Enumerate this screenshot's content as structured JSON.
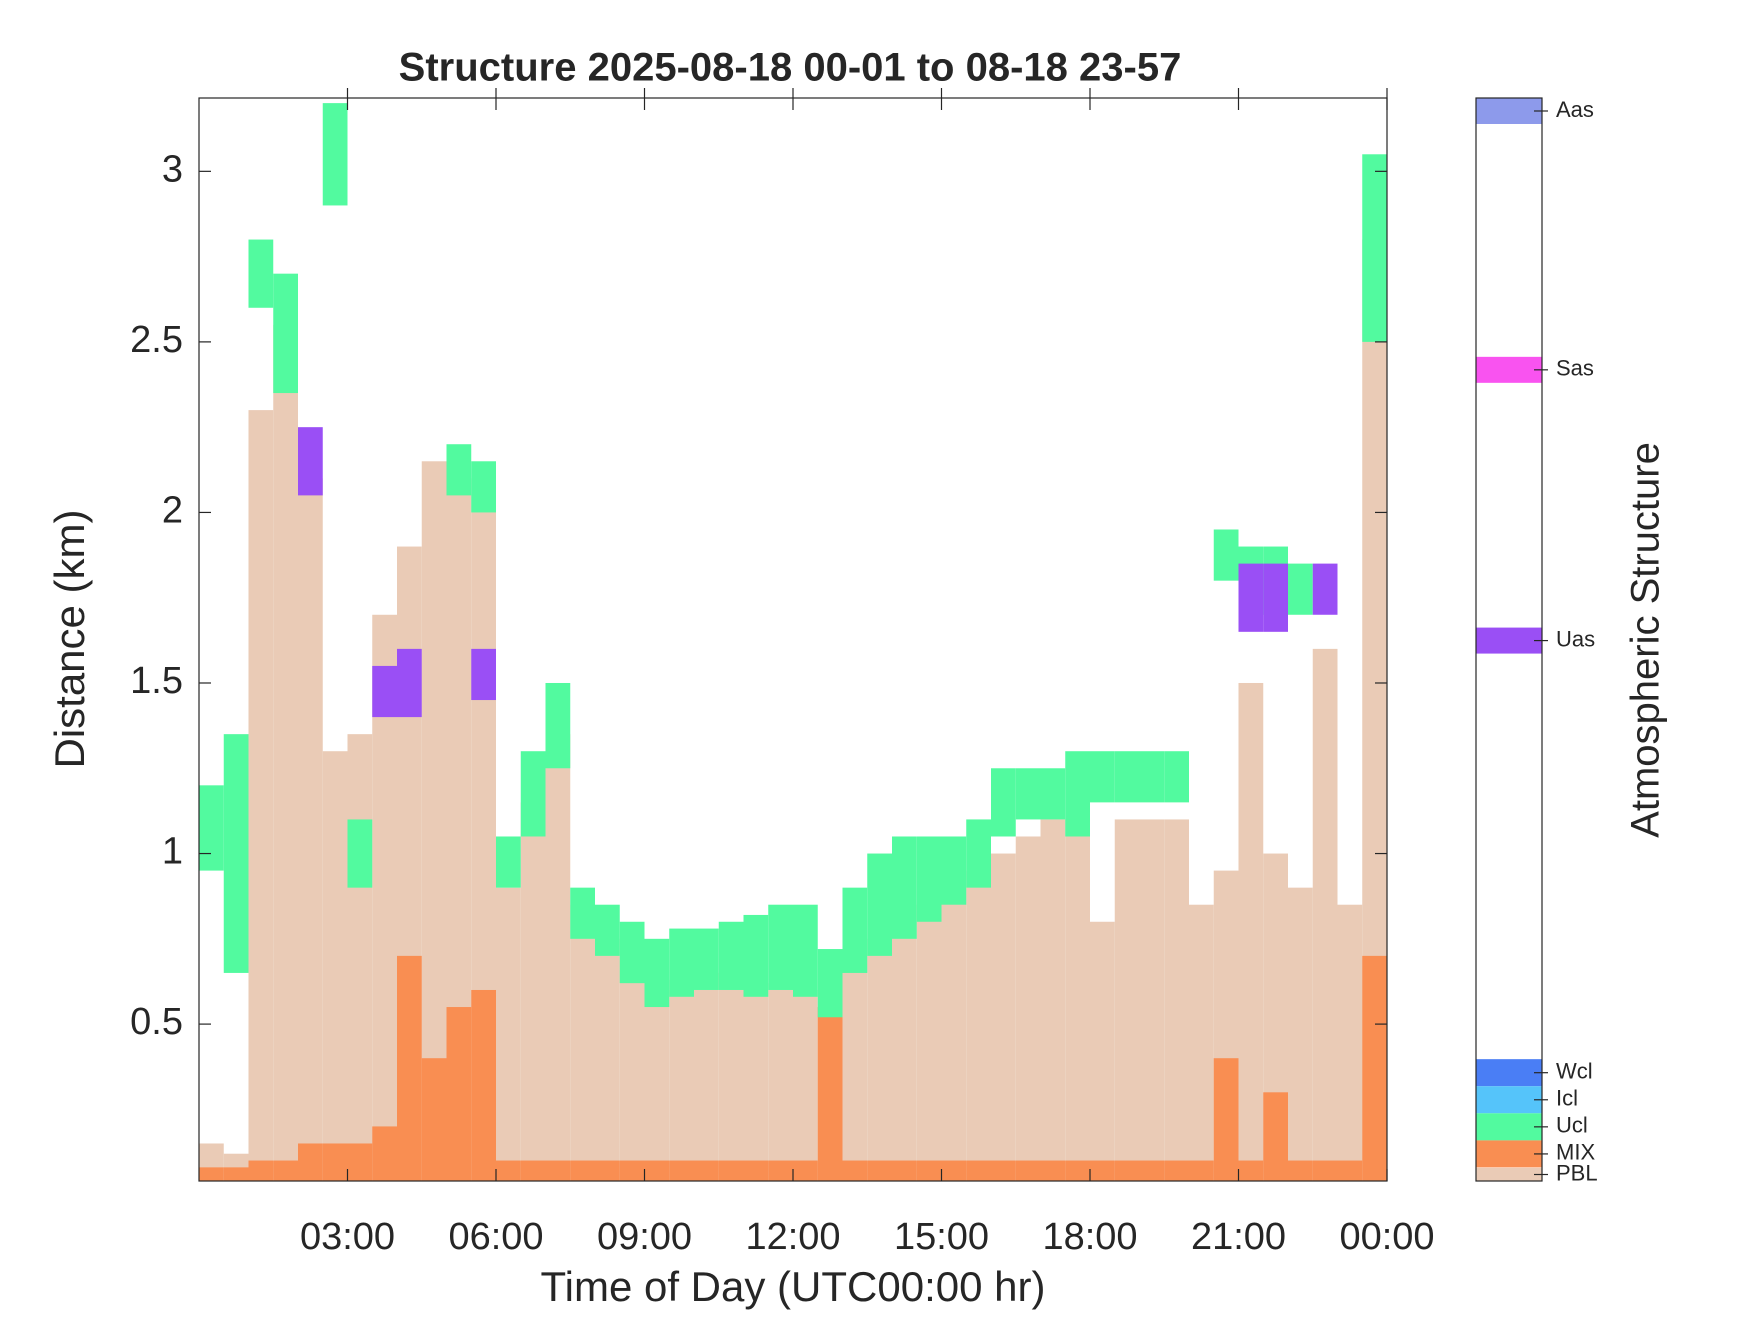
{
  "chart_data": {
    "type": "structure",
    "title": "Structure 2025-08-18 00-01 to 08-18 23-57",
    "x_label": "Time of Day (UTC00:00 hr)",
    "y_label": "Distance (km)",
    "xlim": [
      0,
      24
    ],
    "xticks": [
      {
        "value": 3,
        "label": "03:00"
      },
      {
        "value": 6,
        "label": "06:00"
      },
      {
        "value": 9,
        "label": "09:00"
      },
      {
        "value": 12,
        "label": "12:00"
      },
      {
        "value": 15,
        "label": "15:00"
      },
      {
        "value": 18,
        "label": "18:00"
      },
      {
        "value": 21,
        "label": "21:00"
      },
      {
        "value": 24,
        "label": "00:00"
      }
    ],
    "ylim": [
      0.04,
      3.215
    ],
    "yticks": [
      0.5,
      1,
      1.5,
      2,
      2.5,
      3
    ],
    "x": [
      0.25,
      0.75,
      1.25,
      1.75,
      2.25,
      2.75,
      3.25,
      3.75,
      4.25,
      4.75,
      5.25,
      5.75,
      6.25,
      6.75,
      7.25,
      7.75,
      8.25,
      8.75,
      9.25,
      9.75,
      10.25,
      10.75,
      11.25,
      11.75,
      12.25,
      12.75,
      13.25,
      13.75,
      14.25,
      14.75,
      15.25,
      15.75,
      16.25,
      16.75,
      17.25,
      17.75,
      18.25,
      18.75,
      19.25,
      19.75,
      20.25,
      20.75,
      21.25,
      21.75,
      22.25,
      22.75,
      23.25,
      23.75
    ],
    "series": [
      {
        "name": "PBL",
        "color": "#eacbb6",
        "values": [
          0.15,
          0.12,
          2.3,
          2.55,
          2.1,
          1.3,
          1.35,
          1.7,
          1.9,
          2.15,
          2.1,
          2.05,
          0.9,
          1.15,
          1.35,
          0.85,
          0.75,
          0.7,
          0.6,
          0.63,
          0.65,
          0.65,
          0.62,
          0.6,
          0.6,
          0.55,
          0.7,
          0.75,
          0.8,
          0.85,
          0.9,
          0.95,
          1.0,
          1.05,
          1.1,
          1.1,
          0.8,
          1.1,
          1.1,
          1.1,
          0.85,
          0.95,
          1.5,
          1.0,
          0.9,
          1.6,
          0.85,
          2.8
        ]
      },
      {
        "name": "MIX",
        "color": "#f98e52",
        "values": [
          0.08,
          0.08,
          0.1,
          0.1,
          0.15,
          0.15,
          0.15,
          0.2,
          0.7,
          0.4,
          0.55,
          0.6,
          0.1,
          0.1,
          0.1,
          0.1,
          0.1,
          0.1,
          0.1,
          0.1,
          0.1,
          0.1,
          0.1,
          0.1,
          0.1,
          0.55,
          0.1,
          0.1,
          0.1,
          0.1,
          0.1,
          0.1,
          0.1,
          0.1,
          0.1,
          0.1,
          0.1,
          0.1,
          0.1,
          0.1,
          0.1,
          0.4,
          0.1,
          0.3,
          0.1,
          0.1,
          0.1,
          0.7
        ]
      },
      {
        "name": "Ucl",
        "color": "#52fa9f",
        "base": [
          0.95,
          0.65,
          2.6,
          2.35,
          null,
          2.9,
          0.9,
          null,
          null,
          null,
          2.05,
          2.0,
          0.9,
          1.05,
          1.25,
          0.75,
          0.7,
          0.62,
          0.55,
          0.58,
          0.6,
          0.6,
          0.58,
          0.6,
          0.58,
          0.52,
          0.65,
          0.7,
          0.75,
          0.8,
          0.85,
          0.9,
          1.05,
          1.1,
          1.1,
          1.05,
          1.15,
          1.15,
          1.15,
          1.15,
          null,
          1.8,
          1.7,
          1.7,
          1.7,
          null,
          null,
          2.5
        ],
        "values": [
          1.2,
          1.35,
          2.8,
          2.7,
          null,
          3.2,
          1.1,
          null,
          null,
          null,
          2.2,
          2.15,
          1.05,
          1.3,
          1.5,
          0.9,
          0.85,
          0.8,
          0.75,
          0.78,
          0.78,
          0.8,
          0.82,
          0.85,
          0.85,
          0.72,
          0.9,
          1.0,
          1.05,
          1.05,
          1.05,
          1.1,
          1.25,
          1.25,
          1.25,
          1.3,
          1.3,
          1.3,
          1.3,
          1.3,
          null,
          1.95,
          1.9,
          1.9,
          1.85,
          null,
          null,
          3.05
        ]
      },
      {
        "name": "Uas",
        "color": "#9a4ff5",
        "base": [
          null,
          null,
          null,
          null,
          2.05,
          null,
          null,
          1.4,
          1.4,
          null,
          null,
          1.45,
          null,
          null,
          null,
          null,
          null,
          null,
          null,
          null,
          null,
          null,
          null,
          null,
          null,
          null,
          null,
          null,
          null,
          null,
          null,
          null,
          null,
          null,
          null,
          null,
          null,
          null,
          null,
          null,
          null,
          null,
          1.65,
          1.65,
          null,
          1.7,
          null,
          null
        ],
        "values": [
          null,
          null,
          null,
          null,
          2.25,
          null,
          null,
          1.55,
          1.6,
          null,
          null,
          1.6,
          null,
          null,
          null,
          null,
          null,
          null,
          null,
          null,
          null,
          null,
          null,
          null,
          null,
          null,
          null,
          null,
          null,
          null,
          null,
          null,
          null,
          null,
          null,
          null,
          null,
          null,
          null,
          null,
          null,
          null,
          1.85,
          1.85,
          null,
          1.85,
          null,
          null
        ]
      }
    ],
    "colorbar": {
      "label": "Atmospheric Structure",
      "labels": [
        "Aas",
        "Sas",
        "Uas",
        "Wcl",
        "Icl",
        "Ucl",
        "MIX",
        "PBL"
      ],
      "colors": [
        "#8d9aeb",
        "#f953f0",
        "#9a4ff5",
        "#4a7ef5",
        "#55c4fa",
        "#52fa9f",
        "#f98e52",
        "#eacbb6"
      ]
    }
  }
}
